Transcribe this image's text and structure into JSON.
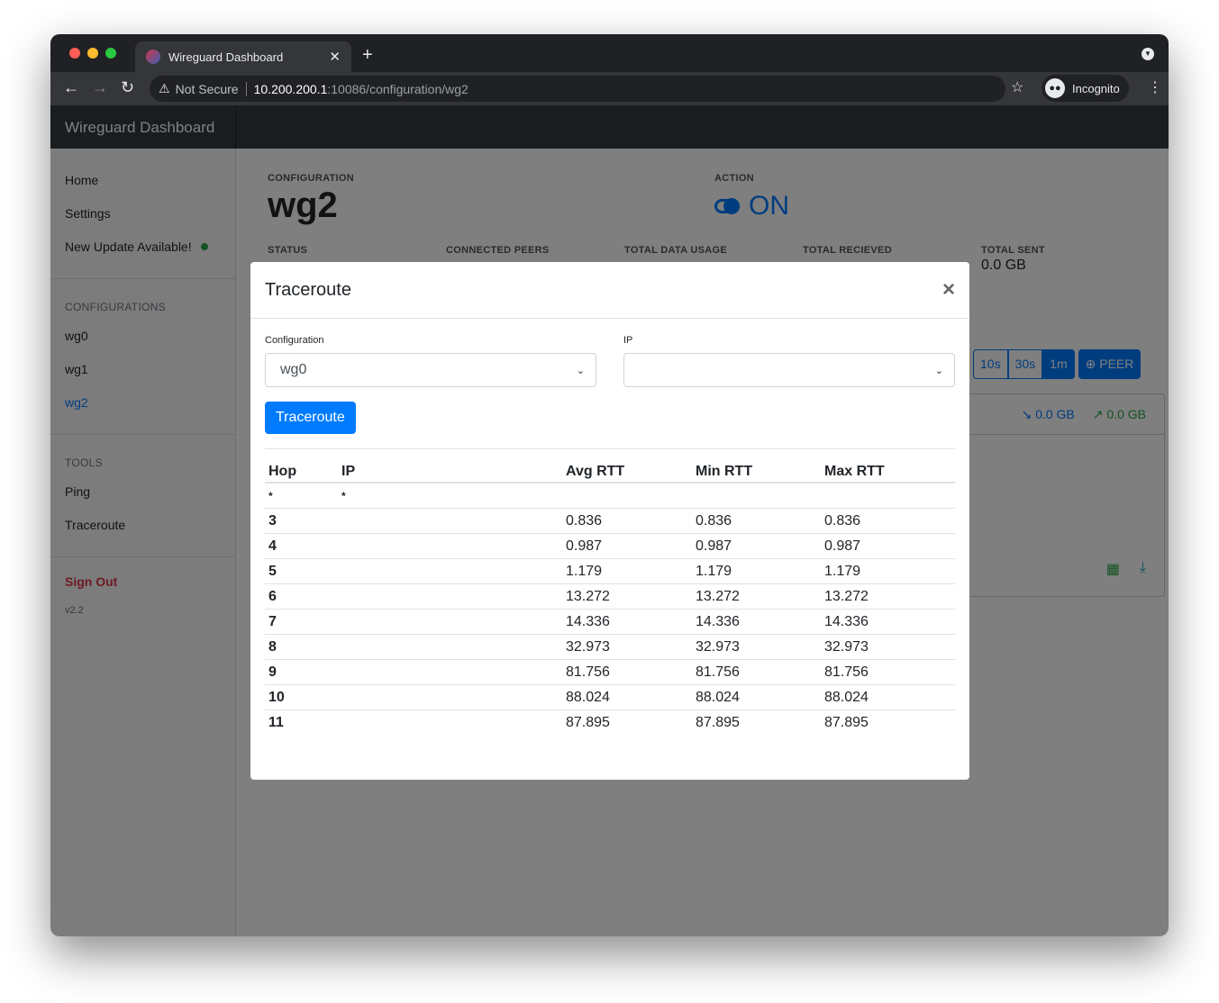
{
  "browser": {
    "tab_title": "Wireguard Dashboard",
    "not_secure": "Not Secure",
    "url_host": "10.200.200.1",
    "url_path": ":10086/configuration/wg2",
    "profile": "Incognito"
  },
  "app": {
    "brand": "Wireguard Dashboard"
  },
  "sidebar": {
    "items": [
      {
        "label": "Home"
      },
      {
        "label": "Settings"
      },
      {
        "label": "New Update Available!"
      }
    ],
    "configs_heading": "CONFIGURATIONS",
    "configs": [
      {
        "label": "wg0"
      },
      {
        "label": "wg1"
      },
      {
        "label": "wg2"
      }
    ],
    "tools_heading": "TOOLS",
    "tools": [
      {
        "label": "Ping"
      },
      {
        "label": "Traceroute"
      }
    ],
    "sign_out": "Sign Out",
    "version": "v2.2"
  },
  "main": {
    "config_label": "CONFIGURATION",
    "config_name": "wg2",
    "action_label": "ACTION",
    "action_state": "ON",
    "stats": [
      {
        "label": "STATUS"
      },
      {
        "label": "CONNECTED PEERS"
      },
      {
        "label": "TOTAL DATA USAGE"
      },
      {
        "label": "TOTAL RECIEVED"
      },
      {
        "label": "TOTAL SENT",
        "value": "0.0 GB"
      }
    ],
    "refresh": [
      "10s",
      "30s",
      "1m"
    ],
    "add_peer": "PEER",
    "peer_received": "0.0 GB",
    "peer_sent": "0.0 GB"
  },
  "modal": {
    "title": "Traceroute",
    "config_label": "Configuration",
    "config_value": "wg0",
    "ip_label": "IP",
    "ip_value": "",
    "button": "Traceroute",
    "columns": [
      "Hop",
      "IP",
      "Avg RTT",
      "Min RTT",
      "Max RTT"
    ],
    "rows": [
      [
        "*",
        "*",
        "",
        "",
        ""
      ],
      [
        "3",
        "",
        "0.836",
        "0.836",
        "0.836"
      ],
      [
        "4",
        "",
        "0.987",
        "0.987",
        "0.987"
      ],
      [
        "5",
        "",
        "1.179",
        "1.179",
        "1.179"
      ],
      [
        "6",
        "",
        "13.272",
        "13.272",
        "13.272"
      ],
      [
        "7",
        "",
        "14.336",
        "14.336",
        "14.336"
      ],
      [
        "8",
        "",
        "32.973",
        "32.973",
        "32.973"
      ],
      [
        "9",
        "",
        "81.756",
        "81.756",
        "81.756"
      ],
      [
        "10",
        "",
        "88.024",
        "88.024",
        "88.024"
      ],
      [
        "11",
        "",
        "87.895",
        "87.895",
        "87.895"
      ]
    ]
  }
}
